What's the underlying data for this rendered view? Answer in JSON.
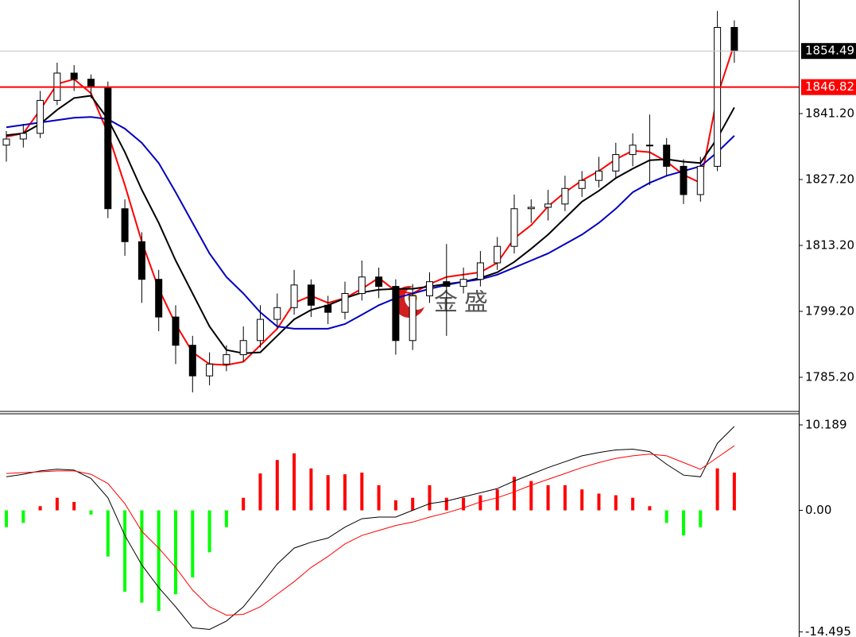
{
  "watermark": "金盛",
  "chart_data": [
    {
      "type": "candlestick",
      "open": [
        1834.5,
        1835.8,
        1837,
        1844,
        1849.8,
        1848.5,
        1846.8,
        1821,
        1814,
        1806,
        1798,
        1792,
        1785.5,
        1788,
        1790,
        1793,
        1797.5,
        1800,
        1804.8,
        1800.5,
        1799,
        1803,
        1806.5,
        1804.5,
        1793,
        1802.5,
        1805.5,
        1804.5,
        1806,
        1809.5,
        1813,
        1821,
        1821.3,
        1822,
        1825.3,
        1827,
        1829,
        1832.5,
        1834.5,
        1834.5,
        1830,
        1824,
        1830,
        1859.5
      ],
      "high": [
        1837.5,
        1839,
        1846,
        1852,
        1851.5,
        1849.5,
        1848,
        1823,
        1816,
        1808,
        1800.5,
        1794,
        1790.5,
        1792,
        1796,
        1800.5,
        1803,
        1808,
        1806,
        1802.5,
        1805.5,
        1810,
        1808.5,
        1806,
        1805,
        1807.5,
        1813.5,
        1808.5,
        1812,
        1815,
        1824,
        1823,
        1825,
        1828,
        1829,
        1832,
        1835,
        1837,
        1841,
        1836,
        1831.5,
        1832,
        1863,
        1861
      ],
      "low": [
        1831,
        1834,
        1836,
        1843,
        1846,
        1844.5,
        1819,
        1811,
        1801,
        1795,
        1788,
        1782,
        1783.5,
        1786.5,
        1788.5,
        1791.5,
        1795.5,
        1798.5,
        1798,
        1796.5,
        1797.5,
        1801.5,
        1802,
        1790,
        1791,
        1801,
        1794,
        1803,
        1804.5,
        1808,
        1811.5,
        1818,
        1818.5,
        1820.5,
        1823.5,
        1825.5,
        1827.5,
        1830,
        1826,
        1828,
        1822,
        1822.5,
        1829,
        1852
      ],
      "close": [
        1835.8,
        1837,
        1844,
        1849.8,
        1848.5,
        1846.8,
        1821,
        1814,
        1806,
        1798,
        1792,
        1785.5,
        1788,
        1790,
        1793,
        1797.5,
        1800,
        1804.8,
        1800.5,
        1799,
        1803,
        1806.5,
        1804.5,
        1793,
        1802.5,
        1805.5,
        1804.5,
        1806,
        1809.5,
        1813,
        1821,
        1821.3,
        1822,
        1825.3,
        1827,
        1829,
        1832.5,
        1834.5,
        1834.5,
        1830,
        1824,
        1830,
        1859.5,
        1854.5
      ],
      "up_color": "#ffffff",
      "down_color": "#000000",
      "wick_color": "#000000",
      "moving_averages": [
        {
          "color": "#ff0000",
          "values": [
            1836.3,
            1837,
            1842,
            1847.5,
            1848.5,
            1845.5,
            1837,
            1826,
            1814,
            1804,
            1796.5,
            1790.5,
            1788,
            1787.8,
            1788.5,
            1792,
            1795.5,
            1801,
            1802.5,
            1801,
            1802,
            1804,
            1806.3,
            1803.5,
            1803,
            1805,
            1806.5,
            1807,
            1807.5,
            1809.5,
            1814.7,
            1817.5,
            1821.5,
            1824.5,
            1827,
            1829,
            1831.5,
            1833.3,
            1833,
            1831,
            1828.2,
            1826.5,
            1845,
            1856
          ]
        },
        {
          "color": "#000000",
          "values": [
            1836.6,
            1837,
            1839,
            1842,
            1844.5,
            1845,
            1840,
            1833,
            1825,
            1818,
            1810,
            1803,
            1796,
            1791,
            1790.3,
            1790.5,
            1794,
            1797.5,
            1799.5,
            1800.5,
            1802,
            1803.2,
            1803.8,
            1804,
            1804,
            1804.5,
            1805,
            1805.5,
            1806.3,
            1807.5,
            1809.7,
            1812.5,
            1815.5,
            1819,
            1822.5,
            1824.8,
            1827.5,
            1829.5,
            1831.3,
            1831.5,
            1831,
            1830.7,
            1836,
            1842.5
          ]
        },
        {
          "color": "#0000c0",
          "values": [
            1838.3,
            1838.8,
            1839.3,
            1839.8,
            1840.3,
            1840.5,
            1840,
            1838,
            1835,
            1830.7,
            1824.5,
            1818,
            1811.5,
            1806.5,
            1803,
            1799,
            1796,
            1795.5,
            1795.5,
            1795.5,
            1796.5,
            1798.5,
            1800.5,
            1802,
            1803,
            1804,
            1804.8,
            1805.5,
            1806,
            1807,
            1808.5,
            1810,
            1811.5,
            1813.5,
            1815.5,
            1818,
            1821,
            1824.5,
            1826.5,
            1828,
            1829,
            1830,
            1833,
            1836.5
          ]
        }
      ],
      "price_lines": [
        {
          "value": 1854.49,
          "color": "#c0c0c0",
          "box_color": "#000000",
          "text_color": "#ffffff"
        },
        {
          "value": 1846.82,
          "color": "#ff0000",
          "box_color": "#ff0000",
          "text_color": "#ffffff"
        }
      ],
      "ylim": [
        1777.95,
        1865.32
      ],
      "yticks": [
        {
          "value": 1785.2,
          "label": "1785.20"
        },
        {
          "value": 1799.2,
          "label": "1799.20"
        },
        {
          "value": 1813.2,
          "label": "1813.20"
        },
        {
          "value": 1827.2,
          "label": "1827.20"
        },
        {
          "value": 1841.2,
          "label": "1841.20"
        }
      ]
    },
    {
      "type": "macd",
      "histogram": {
        "up_color": "#ff0000",
        "down_color": "#00ff00",
        "values": [
          -2,
          -1.5,
          0.5,
          1.5,
          1,
          -0.5,
          -5.5,
          -9.7,
          -11,
          -12,
          -10,
          -8,
          -5,
          -2,
          1.5,
          4.4,
          6,
          6.8,
          5,
          4.2,
          4.3,
          4.5,
          3,
          1.2,
          1.5,
          3,
          1.5,
          1.5,
          1.8,
          2.5,
          4,
          3.5,
          3,
          3,
          2.5,
          2,
          1.8,
          1.5,
          0.5,
          -1.5,
          -3,
          -2,
          5,
          4.5
        ]
      },
      "lines": [
        {
          "color": "#000000",
          "values": [
            4,
            4.3,
            4.7,
            4.9,
            4.8,
            3.8,
            1.5,
            -3,
            -6.5,
            -9.2,
            -11.5,
            -14,
            -14.2,
            -13.2,
            -11.5,
            -9,
            -6.4,
            -4.5,
            -3.8,
            -3.3,
            -2,
            -1,
            -0.8,
            -0.8,
            0,
            0.8,
            1.1,
            1.6,
            2.1,
            2.6,
            3.5,
            4.3,
            5.1,
            5.8,
            6.5,
            6.9,
            7.2,
            7.3,
            7,
            5.5,
            4.2,
            4,
            8,
            10
          ]
        },
        {
          "color": "#ff0000",
          "values": [
            4.4,
            4.5,
            4.6,
            4.7,
            4.7,
            4.3,
            3.2,
            0.8,
            -2.5,
            -4.5,
            -6.8,
            -9.5,
            -11.5,
            -12.5,
            -12.4,
            -11.5,
            -10,
            -8.5,
            -6.8,
            -5.5,
            -4,
            -3,
            -2.4,
            -1.8,
            -1.4,
            -0.8,
            -0.3,
            0.3,
            1,
            1.5,
            2.2,
            3,
            3.7,
            4.4,
            5.1,
            5.7,
            6.2,
            6.5,
            6.7,
            6.5,
            5.7,
            4.9,
            6.3,
            7.7
          ]
        }
      ],
      "ylim": [
        -15.1,
        11.51
      ],
      "yticks": [
        10.189,
        {
          "value": 0,
          "label": "0.00"
        },
        -14.495
      ]
    }
  ]
}
